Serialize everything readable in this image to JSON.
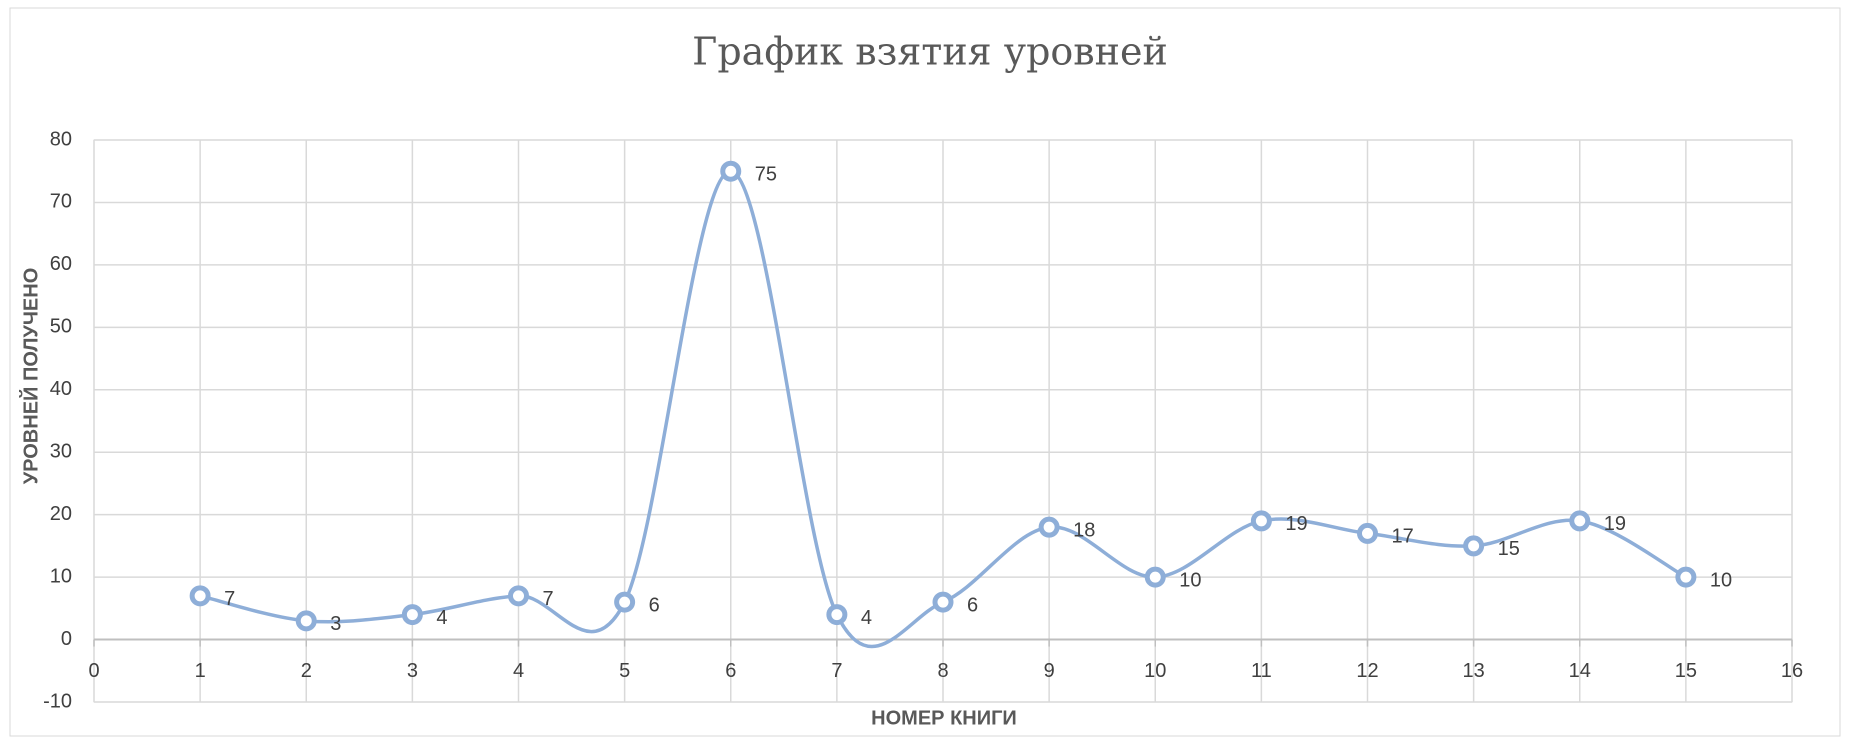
{
  "chart_data": {
    "type": "line",
    "smooth": true,
    "title": "График взятия уровней",
    "x_label": "НОМЕР КНИГИ",
    "y_label": "УРОВНЕЙ ПОЛУЧЕНО",
    "x": [
      1,
      2,
      3,
      4,
      5,
      6,
      7,
      8,
      9,
      10,
      11,
      12,
      13,
      14,
      15
    ],
    "values": [
      7,
      3,
      4,
      7,
      6,
      75,
      4,
      6,
      18,
      10,
      19,
      17,
      15,
      19,
      10
    ],
    "color": "#8eaed8",
    "xlim": [
      0,
      16
    ],
    "xticks": [
      0,
      1,
      2,
      3,
      4,
      5,
      6,
      7,
      8,
      9,
      10,
      11,
      12,
      13,
      14,
      15,
      16
    ],
    "ylim": [
      -10,
      80
    ],
    "yticks": [
      -10,
      0,
      10,
      20,
      30,
      40,
      50,
      60,
      70,
      80
    ],
    "grid": true,
    "data_labels": true
  }
}
